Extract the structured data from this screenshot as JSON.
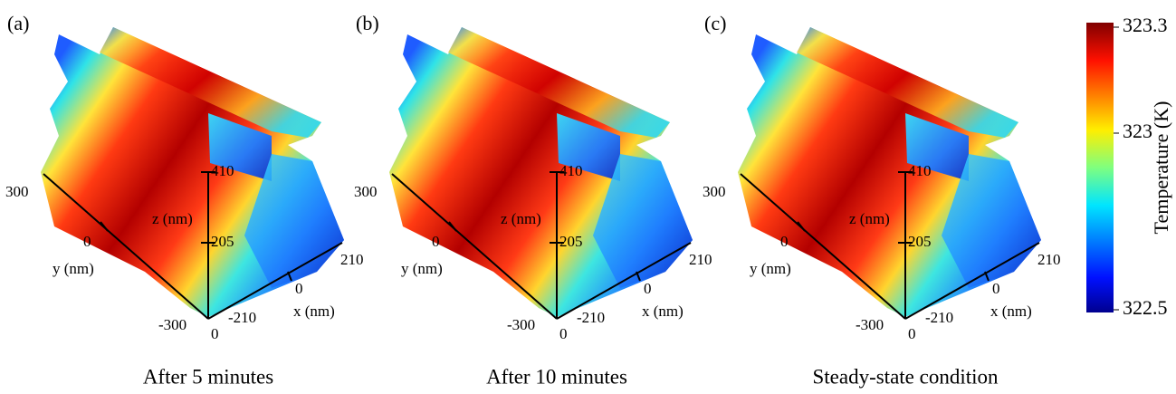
{
  "panels": [
    {
      "label": "(a)",
      "caption": "After 5 minutes",
      "axes": {
        "x_label": "x (nm)",
        "y_label": "y (nm)",
        "z_label": "z (nm)",
        "x_ticks": [
          "-210",
          "0",
          "210"
        ],
        "y_ticks": [
          "-300",
          "0",
          "300"
        ],
        "z_ticks": [
          "0",
          "205",
          "410"
        ]
      }
    },
    {
      "label": "(b)",
      "caption": "After 10 minutes",
      "axes": {
        "x_label": "x (nm)",
        "y_label": "y (nm)",
        "z_label": "z (nm)",
        "x_ticks": [
          "-210",
          "0",
          "210"
        ],
        "y_ticks": [
          "-300",
          "0",
          "300"
        ],
        "z_ticks": [
          "0",
          "205",
          "410"
        ]
      }
    },
    {
      "label": "(c)",
      "caption": "Steady-state condition",
      "axes": {
        "x_label": "x (nm)",
        "y_label": "y (nm)",
        "z_label": "z (nm)",
        "x_ticks": [
          "-210",
          "0",
          "210"
        ],
        "y_ticks": [
          "-300",
          "0",
          "300"
        ],
        "z_ticks": [
          "0",
          "205",
          "410"
        ]
      }
    }
  ],
  "colorbar": {
    "label": "Temperature (K)",
    "lim": [
      322.5,
      323.3
    ],
    "ticks": [
      322.5,
      323,
      323.3
    ]
  }
}
